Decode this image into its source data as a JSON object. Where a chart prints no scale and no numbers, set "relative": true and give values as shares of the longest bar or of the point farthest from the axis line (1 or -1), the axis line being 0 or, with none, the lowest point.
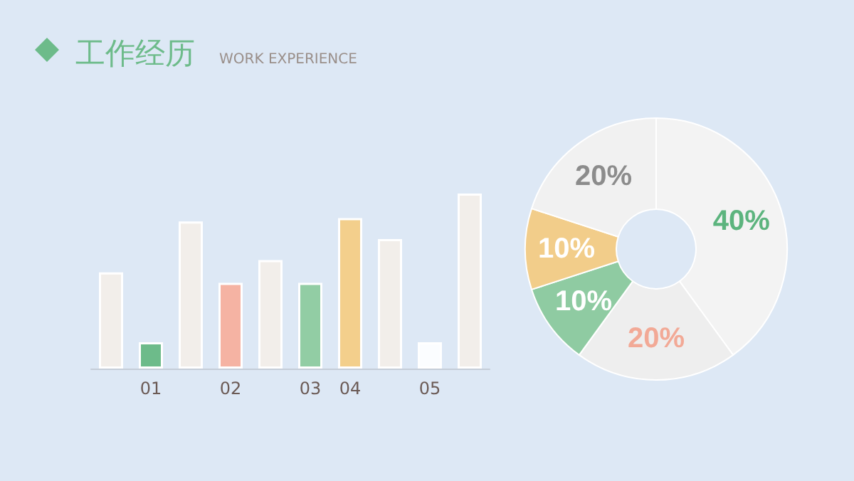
{
  "chart_data": [
    {
      "type": "bar",
      "title": "工作经历",
      "subtitle": "WORK EXPERIENCE",
      "relative": true,
      "categories": [
        null,
        "01",
        null,
        "02",
        null,
        "03",
        "04",
        null,
        "05",
        null
      ],
      "values": [
        0.55,
        0.15,
        0.84,
        0.49,
        0.62,
        0.49,
        0.86,
        0.74,
        0.15,
        1
      ],
      "colors": [
        "#f2eeea",
        "#6dbb8a",
        "#f2eeea",
        "#f5b3a3",
        "#f2eeea",
        "#92cda4",
        "#f3cf8c",
        "#f2eeea",
        "#fbfdff",
        "#f2eeea"
      ]
    },
    {
      "type": "donut",
      "categories": [
        null,
        null,
        null,
        null,
        null
      ],
      "values": [
        40,
        20,
        10,
        10,
        20
      ],
      "colors": [
        "#f3f3f3",
        "#eeeeee",
        "#8fcba2",
        "#f2cd8a",
        "#f1f1f1"
      ],
      "value_labels": [
        "40%",
        "20%",
        "10%",
        "10%",
        "20%"
      ]
    }
  ]
}
